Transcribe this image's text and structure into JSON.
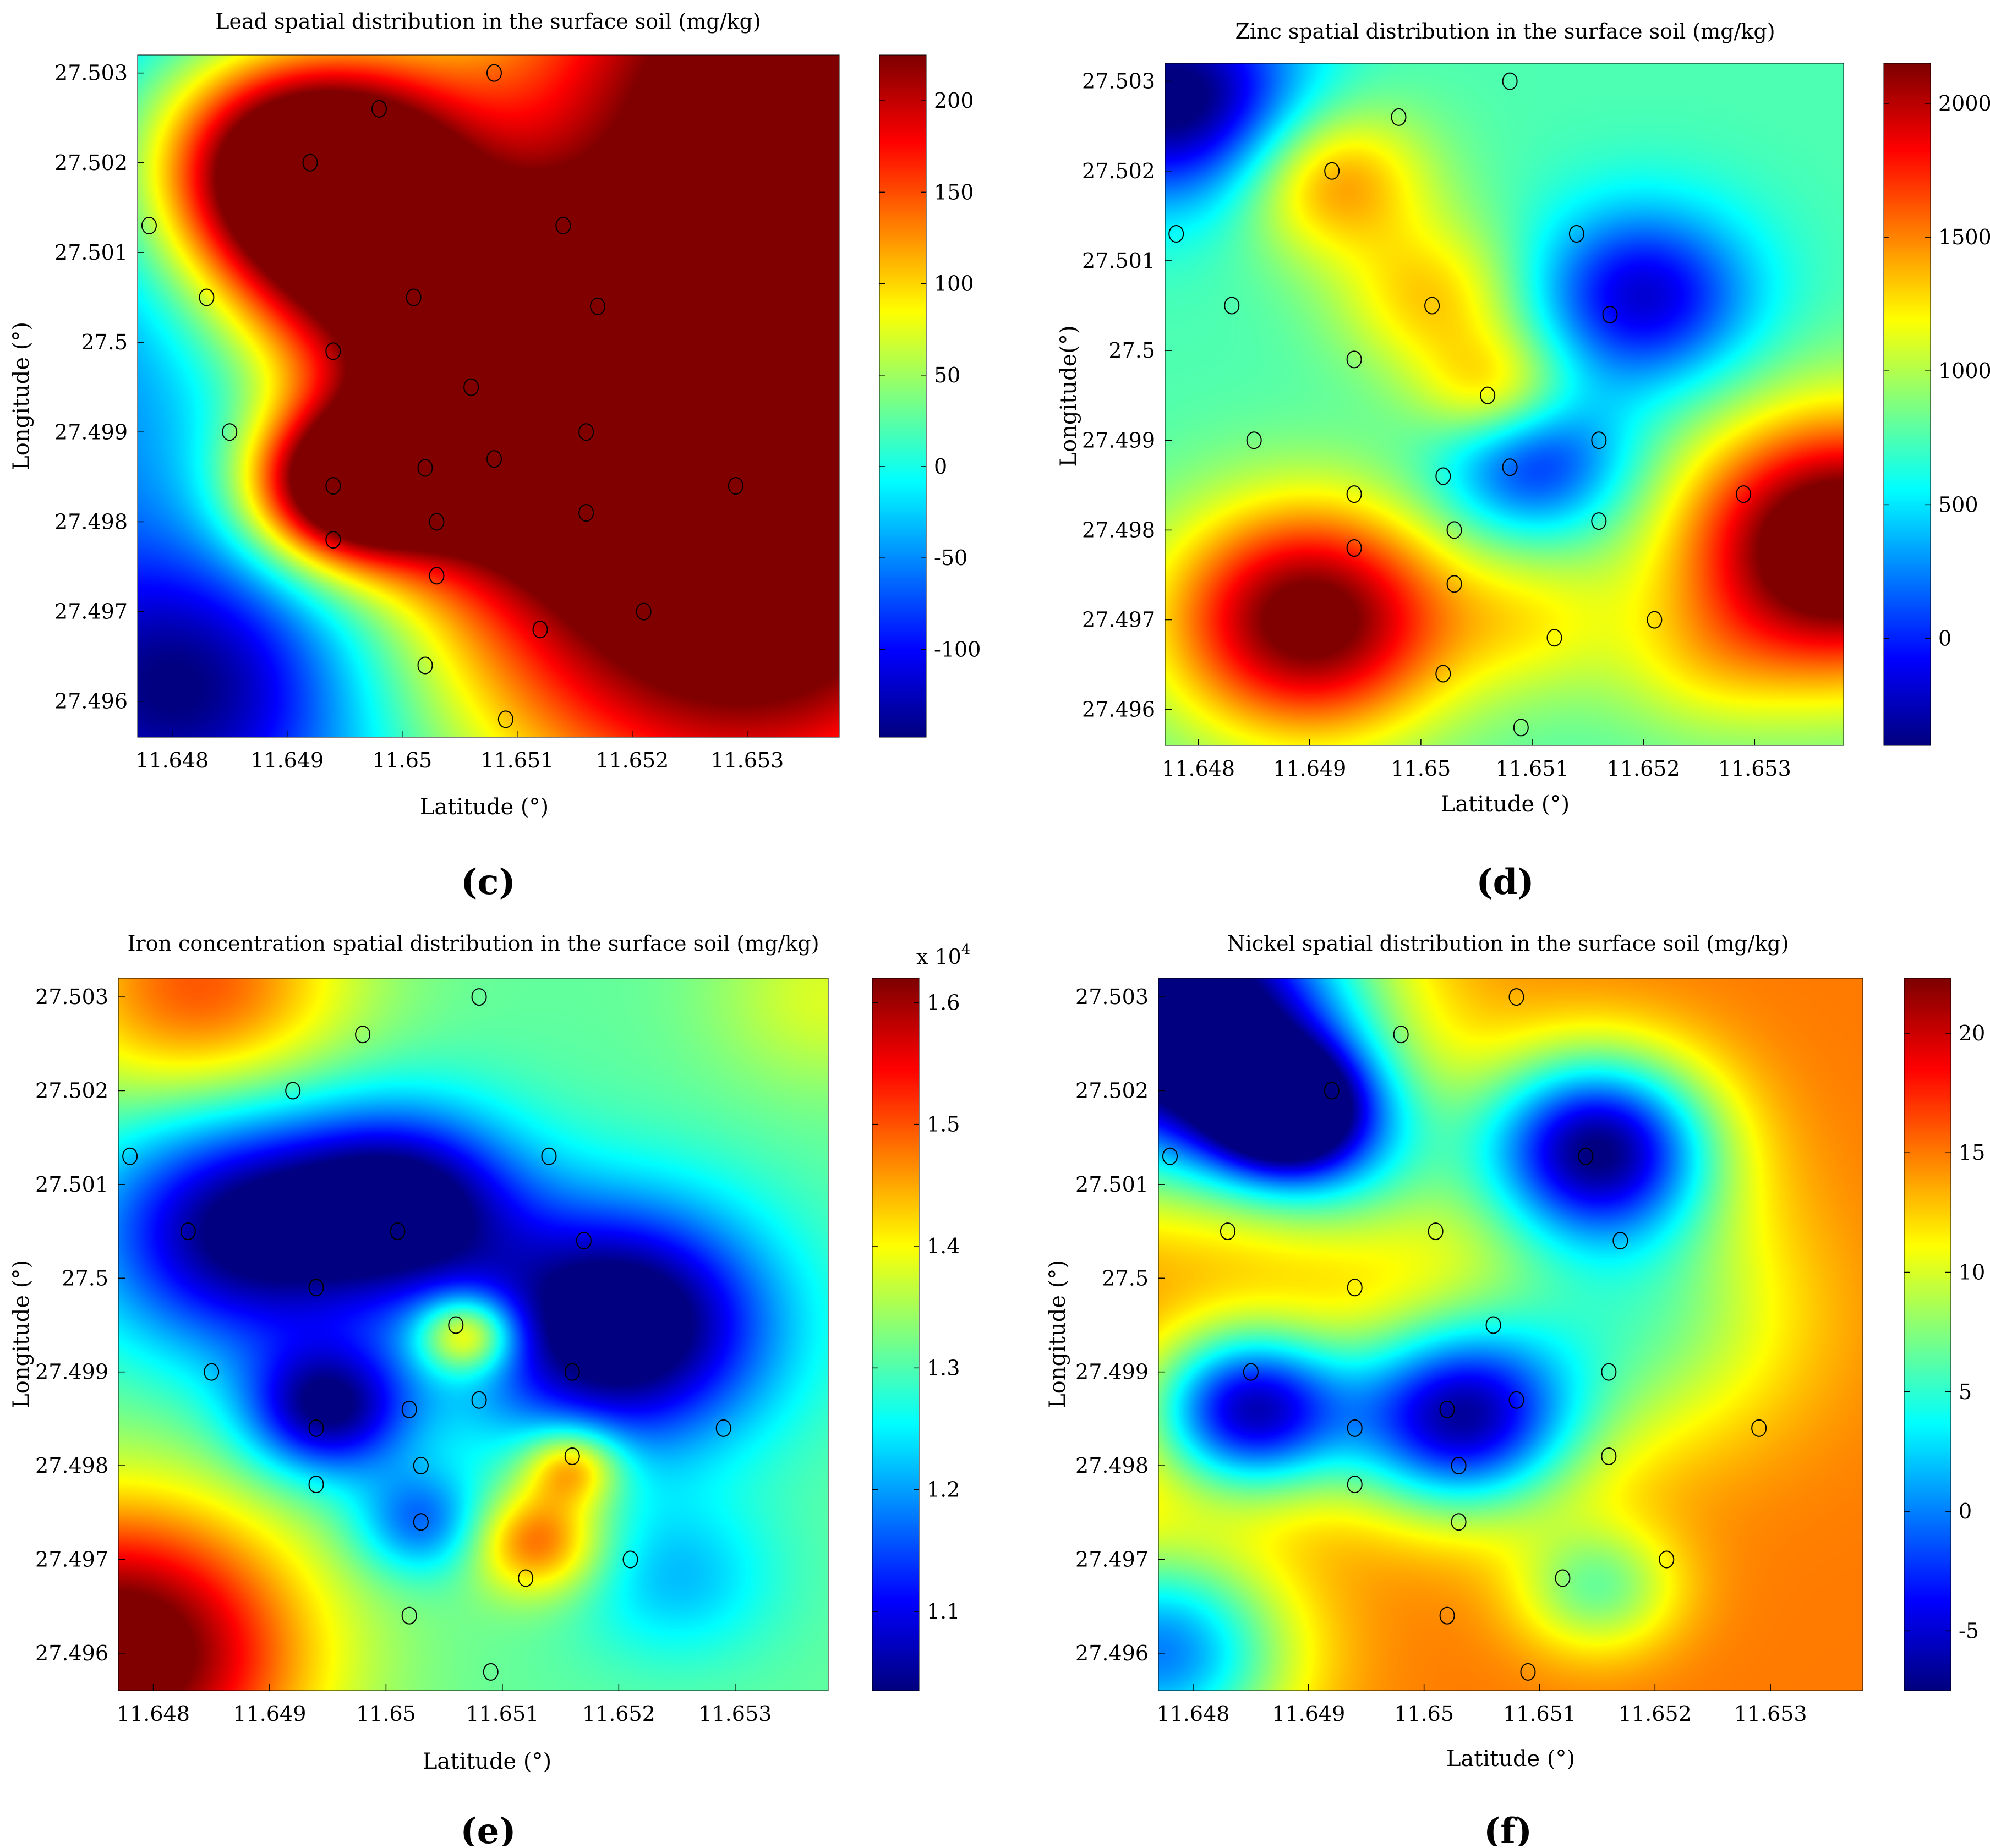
{
  "chart_data": [
    {
      "type": "heatmap",
      "panel_label": "(c)",
      "title": "Lead spatial distribution in the surface soil (mg/kg)",
      "xlabel": "Latitude (°)",
      "ylabel": "Longitude (°)",
      "xlim": [
        11.6477,
        11.6538
      ],
      "ylim": [
        27.4956,
        27.5032
      ],
      "xticks": [
        "11.648",
        "11.649",
        "11.65",
        "11.651",
        "11.652",
        "11.653"
      ],
      "xtick_values": [
        11.648,
        11.649,
        11.65,
        11.651,
        11.652,
        11.653
      ],
      "yticks": [
        "27.503",
        "27.502",
        "27.501",
        "27.5",
        "27.499",
        "27.498",
        "27.497",
        "27.496"
      ],
      "ytick_values": [
        27.503,
        27.502,
        27.501,
        27.5,
        27.499,
        27.498,
        27.497,
        27.496
      ],
      "colorbar": {
        "min": -148,
        "max": 225,
        "ticks": [
          "200",
          "150",
          "100",
          "50",
          "0",
          "-50",
          "-100"
        ],
        "tick_values": [
          200,
          150,
          100,
          50,
          0,
          -50,
          -100
        ]
      },
      "background": -60,
      "field": [
        {
          "x": 11.6492,
          "y": 27.5019,
          "v": 290,
          "s": 0.0009
        },
        {
          "x": 11.6535,
          "y": 27.503,
          "v": 270,
          "s": 0.0022
        },
        {
          "x": 11.653,
          "y": 27.497,
          "v": 250,
          "s": 0.0021
        },
        {
          "x": 11.6519,
          "y": 27.4995,
          "v": 190,
          "s": 0.0014
        },
        {
          "x": 11.6513,
          "y": 27.5002,
          "v": 40,
          "s": 0.0008
        },
        {
          "x": 11.6495,
          "y": 27.4984,
          "v": 200,
          "s": 0.0006
        },
        {
          "x": 11.6497,
          "y": 27.5006,
          "v": 90,
          "s": 0.0009
        },
        {
          "x": 11.6505,
          "y": 27.4988,
          "v": 80,
          "s": 0.0008
        },
        {
          "x": 11.6482,
          "y": 27.4962,
          "v": -170,
          "s": 0.001
        },
        {
          "x": 11.648,
          "y": 27.5029,
          "v": -40,
          "s": 0.001
        }
      ]
    },
    {
      "type": "heatmap",
      "panel_label": "(d)",
      "title": "Zinc spatial distribution in the surface soil (mg/kg)",
      "xlabel": "Latitude (°)",
      "ylabel": "Longitude(°)",
      "xlim": [
        11.6477,
        11.6538
      ],
      "ylim": [
        27.4956,
        27.5032
      ],
      "xticks": [
        "11.648",
        "11.649",
        "11.65",
        "11.651",
        "11.652",
        "11.653"
      ],
      "xtick_values": [
        11.648,
        11.649,
        11.65,
        11.651,
        11.652,
        11.653
      ],
      "yticks": [
        "27.503",
        "27.502",
        "27.501",
        "27.5",
        "27.499",
        "27.498",
        "27.497",
        "27.496"
      ],
      "ytick_values": [
        27.503,
        27.502,
        27.501,
        27.5,
        27.499,
        27.498,
        27.497,
        27.496
      ],
      "colorbar": {
        "min": -400,
        "max": 2150,
        "ticks": [
          "2000",
          "1500",
          "1000",
          "500",
          "0"
        ],
        "tick_values": [
          2000,
          1500,
          1000,
          500,
          0
        ]
      },
      "background": 750,
      "field": [
        {
          "x": 11.6492,
          "y": 27.5019,
          "v": 1500,
          "s": 0.0006
        },
        {
          "x": 11.6501,
          "y": 27.5006,
          "v": 1300,
          "s": 0.0006
        },
        {
          "x": 11.6507,
          "y": 27.4995,
          "v": 1450,
          "s": 0.0005
        },
        {
          "x": 11.649,
          "y": 27.497,
          "v": 2300,
          "s": 0.0009
        },
        {
          "x": 11.6538,
          "y": 27.4978,
          "v": 2600,
          "s": 0.001
        },
        {
          "x": 11.652,
          "y": 27.5006,
          "v": -200,
          "s": 0.0007
        },
        {
          "x": 11.651,
          "y": 27.4988,
          "v": -100,
          "s": 0.0006
        },
        {
          "x": 11.6478,
          "y": 27.5028,
          "v": -500,
          "s": 0.0008
        },
        {
          "x": 11.651,
          "y": 27.497,
          "v": 1100,
          "s": 0.0006
        },
        {
          "x": 11.6525,
          "y": 27.4965,
          "v": 1000,
          "s": 0.0006
        }
      ]
    },
    {
      "type": "heatmap",
      "panel_label": "(e)",
      "title": "Iron concentration spatial distribution in the surface soil (mg/kg)",
      "xlabel": "Latitude (°)",
      "ylabel": "Longitude (°)",
      "multiplier": "x 10",
      "multiplier_exponent": "4",
      "xlim": [
        11.6477,
        11.6538
      ],
      "ylim": [
        27.4956,
        27.5032
      ],
      "xticks": [
        "11.648",
        "11.649",
        "11.65",
        "11.651",
        "11.652",
        "11.653"
      ],
      "xtick_values": [
        11.648,
        11.649,
        11.65,
        11.651,
        11.652,
        11.653
      ],
      "yticks": [
        "27.503",
        "27.502",
        "27.501",
        "27.5",
        "27.499",
        "27.498",
        "27.497",
        "27.496"
      ],
      "ytick_values": [
        27.503,
        27.502,
        27.501,
        27.5,
        27.499,
        27.498,
        27.497,
        27.496
      ],
      "colorbar": {
        "min": 1.035,
        "max": 1.62,
        "ticks": [
          "1.6",
          "1.5",
          "1.4",
          "1.3",
          "1.2",
          "1.1"
        ],
        "tick_values": [
          1.6,
          1.5,
          1.4,
          1.3,
          1.2,
          1.1
        ]
      },
      "background": 1.31,
      "field": [
        {
          "x": 11.6477,
          "y": 27.496,
          "v": 1.68,
          "s": 0.0011
        },
        {
          "x": 11.6484,
          "y": 27.5031,
          "v": 1.5,
          "s": 0.0009
        },
        {
          "x": 11.6538,
          "y": 27.503,
          "v": 1.38,
          "s": 0.0007
        },
        {
          "x": 11.6488,
          "y": 27.5005,
          "v": 1.02,
          "s": 0.0009
        },
        {
          "x": 11.6502,
          "y": 27.5008,
          "v": 1.05,
          "s": 0.0007
        },
        {
          "x": 11.652,
          "y": 27.4995,
          "v": 0.96,
          "s": 0.0009
        },
        {
          "x": 11.6495,
          "y": 27.4986,
          "v": 1.04,
          "s": 0.0005
        },
        {
          "x": 11.6507,
          "y": 27.4994,
          "v": 1.55,
          "s": 0.0003
        },
        {
          "x": 11.6513,
          "y": 27.4972,
          "v": 1.5,
          "s": 0.0004
        },
        {
          "x": 11.6516,
          "y": 27.498,
          "v": 1.5,
          "s": 0.0003
        },
        {
          "x": 11.6525,
          "y": 27.4968,
          "v": 1.22,
          "s": 0.0006
        },
        {
          "x": 11.6503,
          "y": 27.4974,
          "v": 1.16,
          "s": 0.0004
        }
      ]
    },
    {
      "type": "heatmap",
      "panel_label": "(f)",
      "title": "Nickel spatial distribution in the surface soil (mg/kg)",
      "xlabel": "Latitude (°)",
      "ylabel": "Longitude (°)",
      "xlim": [
        11.6477,
        11.6538
      ],
      "ylim": [
        27.4956,
        27.5032
      ],
      "xticks": [
        "11.648",
        "11.649",
        "11.65",
        "11.651",
        "11.652",
        "11.653"
      ],
      "xtick_values": [
        11.648,
        11.649,
        11.65,
        11.651,
        11.652,
        11.653
      ],
      "yticks": [
        "27.503",
        "27.502",
        "27.501",
        "27.5",
        "27.499",
        "27.498",
        "27.497",
        "27.496"
      ],
      "ytick_values": [
        27.503,
        27.502,
        27.501,
        27.5,
        27.499,
        27.498,
        27.497,
        27.496
      ],
      "colorbar": {
        "min": -7.5,
        "max": 22.3,
        "ticks": [
          "20",
          "15",
          "10",
          "5",
          "0",
          "-5"
        ],
        "tick_values": [
          20,
          15,
          10,
          5,
          0,
          -5
        ]
      },
      "background": 15,
      "field": [
        {
          "x": 11.6478,
          "y": 27.5028,
          "v": -14,
          "s": 0.0011
        },
        {
          "x": 11.6477,
          "y": 27.496,
          "v": 0,
          "s": 0.0008
        },
        {
          "x": 11.6494,
          "y": 27.5013,
          "v": 8,
          "s": 0.0007
        },
        {
          "x": 11.6518,
          "y": 27.4996,
          "v": 7,
          "s": 0.001
        },
        {
          "x": 11.6515,
          "y": 27.4967,
          "v": 7,
          "s": 0.0005
        },
        {
          "x": 11.6515,
          "y": 27.5014,
          "v": -6,
          "s": 0.0007
        },
        {
          "x": 11.6503,
          "y": 27.4985,
          "v": -5,
          "s": 0.0007
        },
        {
          "x": 11.6485,
          "y": 27.4986,
          "v": -5,
          "s": 0.0006
        },
        {
          "x": 11.6488,
          "y": 27.5018,
          "v": -4,
          "s": 0.0005
        }
      ]
    }
  ],
  "sample_points": [
    [
      11.6478,
      27.5013
    ],
    [
      11.6483,
      27.5005
    ],
    [
      11.6485,
      27.499
    ],
    [
      11.6492,
      27.502
    ],
    [
      11.6494,
      27.4999
    ],
    [
      11.6494,
      27.4984
    ],
    [
      11.6494,
      27.4978
    ],
    [
      11.6498,
      27.5026
    ],
    [
      11.6501,
      27.5005
    ],
    [
      11.6502,
      27.4986
    ],
    [
      11.6503,
      27.498
    ],
    [
      11.6503,
      27.4974
    ],
    [
      11.6502,
      27.4964
    ],
    [
      11.6506,
      27.4995
    ],
    [
      11.6508,
      27.503
    ],
    [
      11.6508,
      27.4987
    ],
    [
      11.6509,
      27.4958
    ],
    [
      11.6512,
      27.4968
    ],
    [
      11.6514,
      27.5013
    ],
    [
      11.6516,
      27.4981
    ],
    [
      11.6516,
      27.499
    ],
    [
      11.6517,
      27.5004
    ],
    [
      11.6521,
      27.497
    ],
    [
      11.6529,
      27.4984
    ]
  ]
}
